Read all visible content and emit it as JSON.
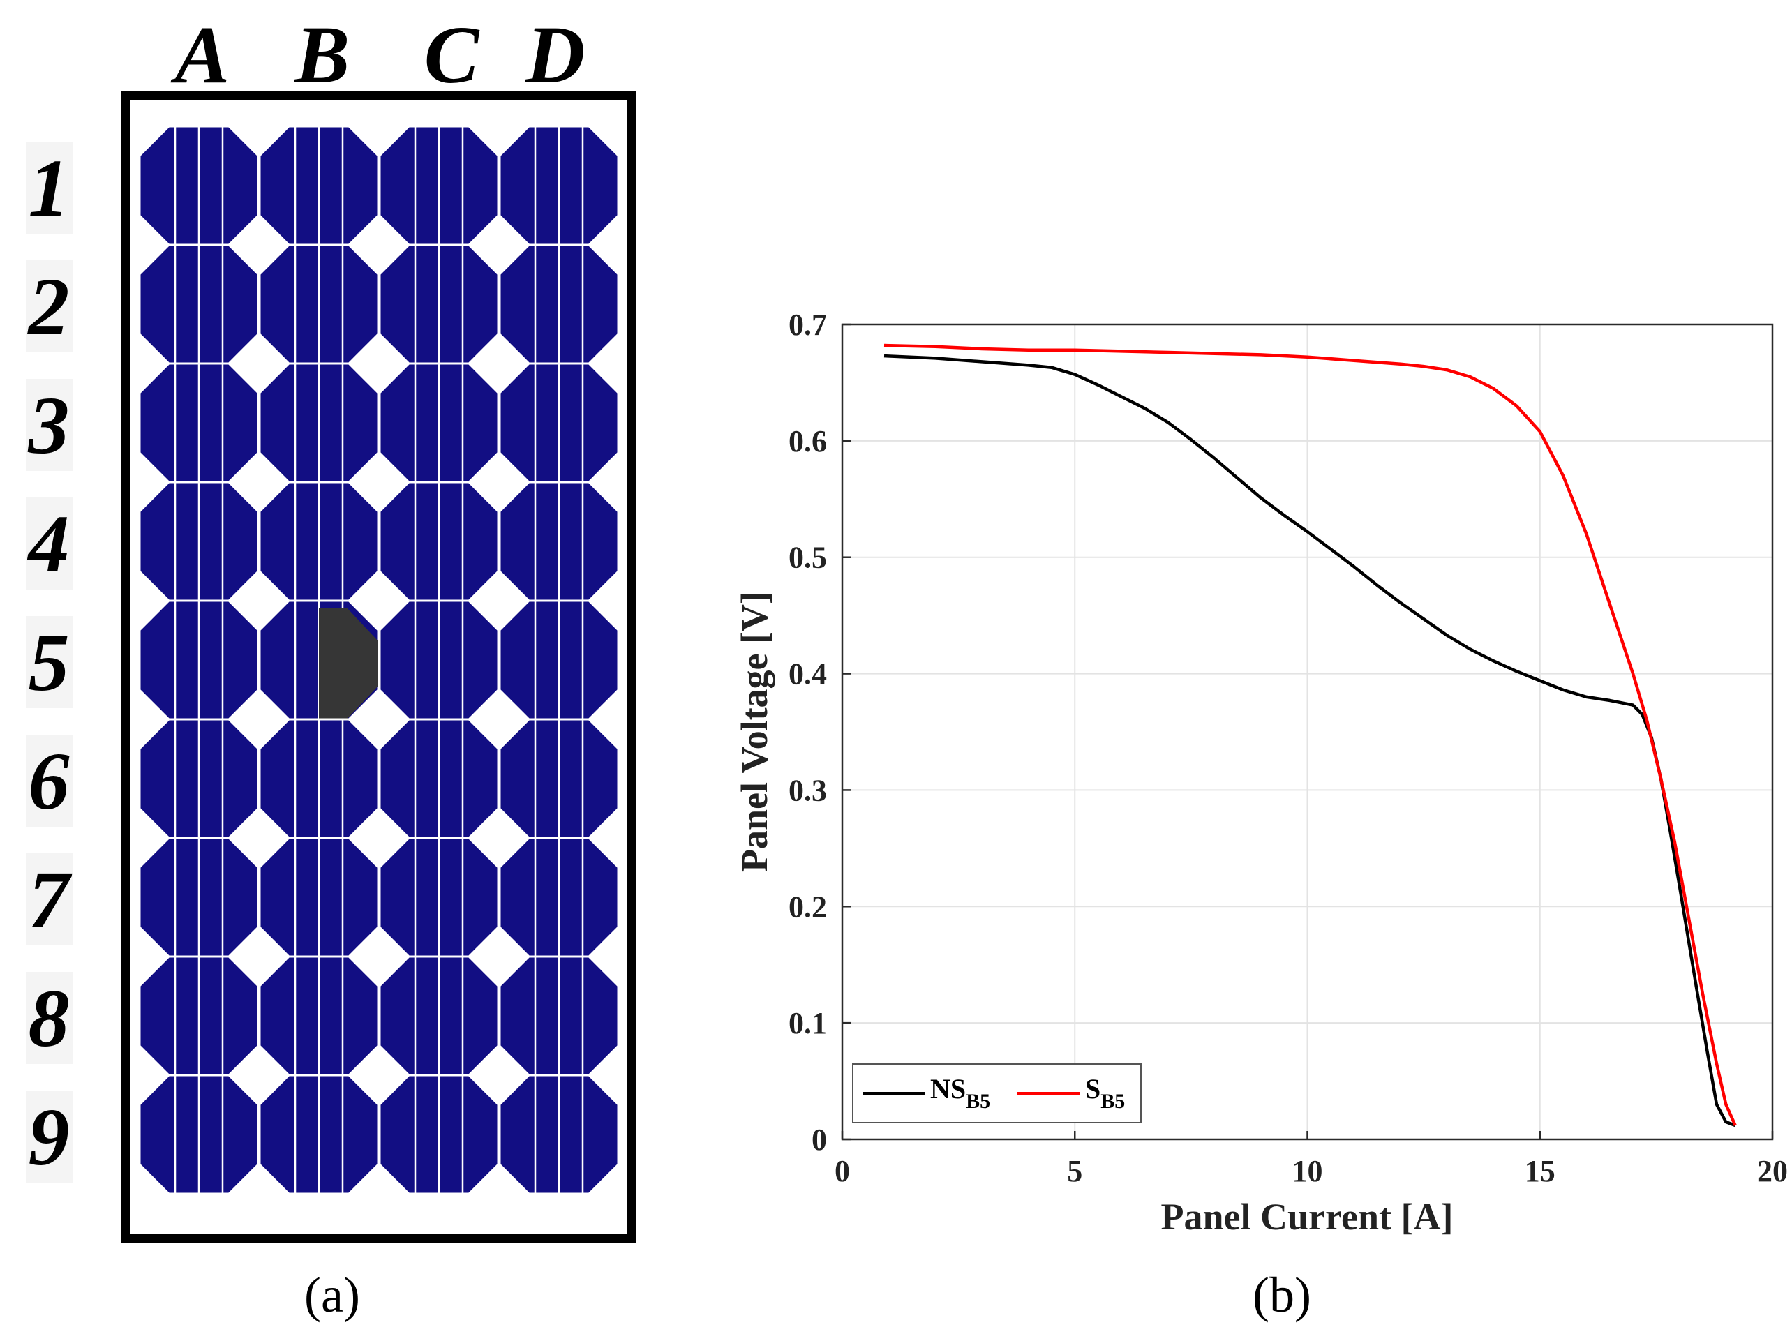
{
  "panel_a": {
    "column_labels": [
      "A",
      "B",
      "C",
      "D"
    ],
    "row_labels": [
      "1",
      "2",
      "3",
      "4",
      "5",
      "6",
      "7",
      "8",
      "9"
    ],
    "shaded_cell": "B5",
    "caption": "(a)",
    "colors": {
      "cell": "#120e83",
      "shaded": "#363636",
      "frame": "#000000",
      "row_label_bg": "#f4f4f4"
    }
  },
  "panel_b": {
    "caption": "(b)"
  },
  "chart_data": {
    "type": "line",
    "title": "",
    "xlabel": "Panel Current [A]",
    "ylabel": "Panel Voltage [V]",
    "xlim": [
      0,
      20
    ],
    "ylim": [
      0,
      0.7
    ],
    "xticks": [
      0,
      5,
      10,
      15,
      20
    ],
    "yticks": [
      0,
      0.1,
      0.2,
      0.3,
      0.4,
      0.5,
      0.6,
      0.7
    ],
    "xtick_labels": [
      "0",
      "5",
      "10",
      "15",
      "20"
    ],
    "ytick_labels": [
      "0",
      "0.1",
      "0.2",
      "0.3",
      "0.4",
      "0.5",
      "0.6",
      "0.7"
    ],
    "grid": true,
    "legend_position": "bottom-left",
    "series": [
      {
        "name": "NS",
        "name_sub": "B5",
        "color": "#000000",
        "x": [
          0.9,
          2,
          3,
          4,
          4.5,
          5,
          5.5,
          6,
          6.5,
          7,
          7.5,
          8,
          8.5,
          9,
          9.5,
          10,
          10.5,
          11,
          11.5,
          12,
          12.5,
          13,
          13.5,
          14,
          14.5,
          15,
          15.5,
          16,
          16.5,
          17,
          17.2,
          17.4,
          17.6,
          17.8,
          18.0,
          18.2,
          18.4,
          18.6,
          18.8,
          19.0,
          19.2
        ],
        "y": [
          0.673,
          0.671,
          0.668,
          0.665,
          0.663,
          0.657,
          0.648,
          0.638,
          0.628,
          0.616,
          0.601,
          0.585,
          0.568,
          0.551,
          0.536,
          0.522,
          0.507,
          0.492,
          0.476,
          0.461,
          0.447,
          0.433,
          0.421,
          0.411,
          0.402,
          0.394,
          0.386,
          0.38,
          0.377,
          0.373,
          0.365,
          0.345,
          0.31,
          0.265,
          0.218,
          0.17,
          0.122,
          0.075,
          0.03,
          0.015,
          0.012
        ]
      },
      {
        "name": "S",
        "name_sub": "B5",
        "color": "#ff0000",
        "x": [
          0.9,
          2,
          3,
          4,
          5,
          6,
          7,
          8,
          9,
          10,
          11,
          12,
          12.5,
          13,
          13.5,
          14,
          14.5,
          15,
          15.5,
          16,
          16.5,
          17,
          17.3,
          17.6,
          17.9,
          18.2,
          18.5,
          18.8,
          19.0,
          19.2
        ],
        "y": [
          0.682,
          0.681,
          0.679,
          0.678,
          0.678,
          0.677,
          0.676,
          0.675,
          0.674,
          0.672,
          0.669,
          0.666,
          0.664,
          0.661,
          0.655,
          0.645,
          0.63,
          0.608,
          0.57,
          0.52,
          0.46,
          0.4,
          0.36,
          0.31,
          0.255,
          0.19,
          0.125,
          0.065,
          0.03,
          0.012
        ]
      }
    ]
  }
}
